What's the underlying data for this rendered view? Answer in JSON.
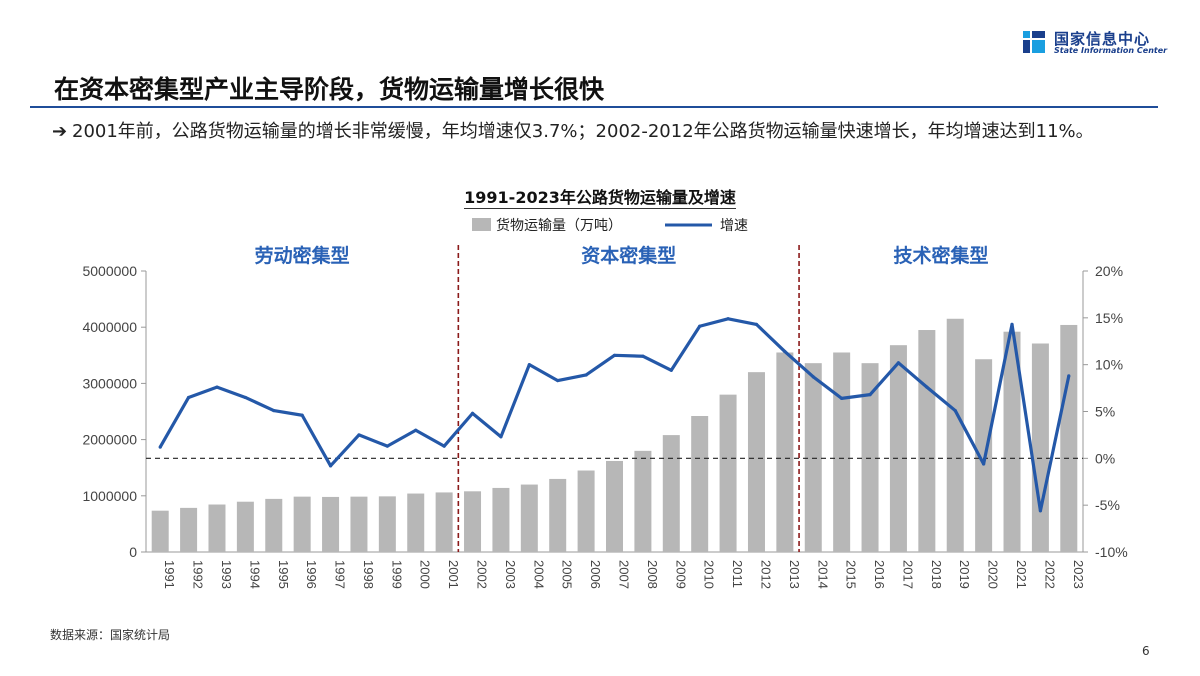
{
  "header": {
    "logo_cn": "国家信息中心",
    "logo_en": "State Information Center",
    "headline": "在资本密集型产业主导阶段，货物运输量增长很快",
    "bullet_arrow": "➔",
    "bullet_text": "2001年前，公路货物运输量的增长非常缓慢，年均增速仅3.7%；2002-2012年公路货物运输量快速增长，年均增速达到11%。"
  },
  "footer": {
    "source": "数据来源：国家统计局",
    "page": "6"
  },
  "colors": {
    "bar": "#b7b7b7",
    "line": "#2458a8",
    "phase_text": "#2a62b6",
    "divider": "#8b1a1a",
    "brand": "#1a3f8c"
  },
  "chart_data": {
    "type": "bar",
    "title": "1991-2023年公路货物运输量及增速",
    "categories": [
      "1991",
      "1992",
      "1993",
      "1994",
      "1995",
      "1996",
      "1997",
      "1998",
      "1999",
      "2000",
      "2001",
      "2002",
      "2003",
      "2004",
      "2005",
      "2006",
      "2007",
      "2008",
      "2009",
      "2010",
      "2011",
      "2012",
      "2013",
      "2014",
      "2015",
      "2016",
      "2017",
      "2018",
      "2019",
      "2020",
      "2021",
      "2022",
      "2023"
    ],
    "series": [
      {
        "name": "货物运输量（万吨）",
        "type": "bar",
        "axis": "left",
        "values": [
          735000,
          785000,
          845000,
          895000,
          945000,
          985000,
          980000,
          985000,
          990000,
          1040000,
          1060000,
          1080000,
          1140000,
          1200000,
          1300000,
          1450000,
          1620000,
          1800000,
          2080000,
          2420000,
          2800000,
          3200000,
          3550000,
          3360000,
          3550000,
          3360000,
          3680000,
          3950000,
          4150000,
          3430000,
          3920000,
          3710000,
          4040000
        ]
      },
      {
        "name": "增速",
        "type": "line",
        "axis": "right",
        "values": [
          1.2,
          6.5,
          7.6,
          6.5,
          5.1,
          4.6,
          -0.8,
          2.5,
          1.3,
          3.0,
          1.3,
          4.8,
          2.3,
          10.0,
          8.3,
          8.9,
          11.0,
          10.9,
          9.4,
          14.1,
          14.9,
          14.3,
          11.4,
          8.7,
          6.4,
          6.8,
          10.2,
          7.6,
          5.1,
          -0.6,
          14.3,
          -5.6,
          8.8
        ]
      }
    ],
    "y_left": {
      "min": 0,
      "max": 5000000,
      "ticks": [
        "0",
        "1000000",
        "2000000",
        "3000000",
        "4000000",
        "5000000"
      ]
    },
    "y_right": {
      "min": -10,
      "max": 20,
      "ticks": [
        "-10%",
        "-5%",
        "0%",
        "5%",
        "10%",
        "15%",
        "20%"
      ]
    },
    "phases": [
      {
        "label": "劳动密集型",
        "from": "1991",
        "to": "2001"
      },
      {
        "label": "资本密集型",
        "from": "2002",
        "to": "2013"
      },
      {
        "label": "技术密集型",
        "from": "2014",
        "to": "2023"
      }
    ],
    "zero_reference_line": "0%",
    "legend_position": "top-center",
    "grid": false
  }
}
